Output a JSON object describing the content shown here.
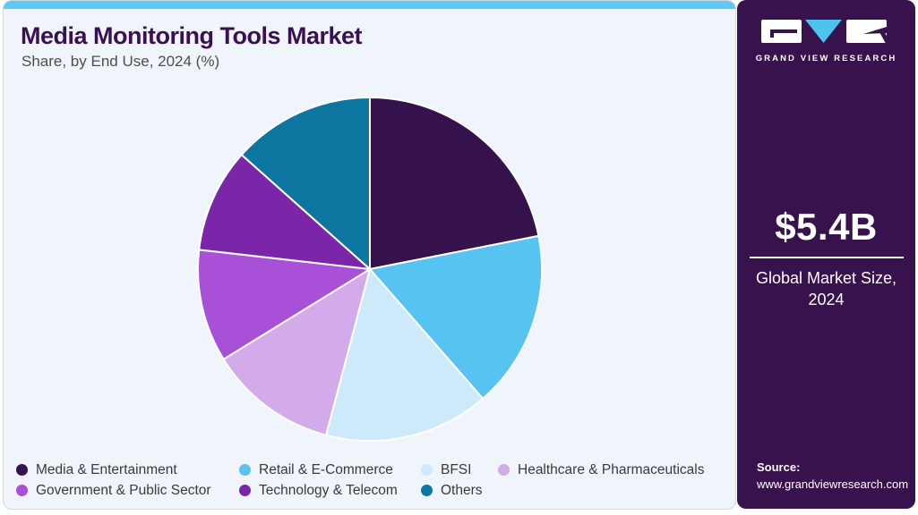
{
  "header": {
    "title": "Media Monitoring Tools Market",
    "subtitle": "Share, by End Use, 2024 (%)"
  },
  "sidebar": {
    "logo_text": "GRAND VIEW RESEARCH",
    "market_size_value": "$5.4B",
    "market_size_caption_line1": "Global Market Size,",
    "market_size_caption_line2": "2024",
    "source_label": "Source:",
    "source_url": "www.grandviewresearch.com"
  },
  "colors": {
    "accent_bar": "#5ec9f4",
    "panel_background": "#eff5fa",
    "panel_border": "#cfd9e0",
    "sidebar_background": "#37124c",
    "title_text": "#3a1053",
    "logo_triangle": "#4ec3ee",
    "slice_divider": "#ffffff"
  },
  "chart_data": {
    "type": "pie",
    "title": "Media Monitoring Tools Market Share, by End Use, 2024 (%)",
    "value_unit": "%",
    "start_angle_deg_from_12_clockwise": 0,
    "slices": [
      {
        "label": "Media & Entertainment",
        "value": 21.9,
        "color": "#36124d"
      },
      {
        "label": "Retail & E-Commerce",
        "value": 16.7,
        "color": "#56c3f1"
      },
      {
        "label": "BFSI",
        "value": 15.5,
        "color": "#cdeafa"
      },
      {
        "label": "Healthcare & Pharmaceuticals",
        "value": 12.1,
        "color": "#d4abea"
      },
      {
        "label": "Government & Public Sector",
        "value": 10.6,
        "color": "#a950d9"
      },
      {
        "label": "Technology & Telecom",
        "value": 9.8,
        "color": "#7b26a8"
      },
      {
        "label": "Others",
        "value": 13.4,
        "color": "#0d76a0"
      }
    ],
    "legend_position": "bottom"
  }
}
